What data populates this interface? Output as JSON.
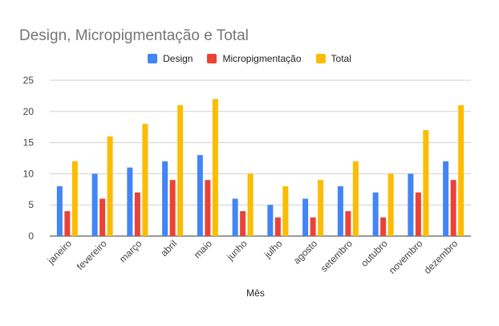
{
  "chart_data": {
    "type": "bar",
    "title": "Design, Micropigmentação e Total",
    "xlabel": "Mês",
    "ylabel": "",
    "ylim": [
      0,
      25
    ],
    "yticks": [
      0,
      5,
      10,
      15,
      20,
      25
    ],
    "grid": true,
    "legend_position": "top",
    "categories": [
      "janeiro",
      "fevereiro",
      "março",
      "abril",
      "maio",
      "junho",
      "julho",
      "agosto",
      "setembro",
      "outubro",
      "novembro",
      "dezembro"
    ],
    "series": [
      {
        "name": "Design",
        "color": "#4285F4",
        "values": [
          8,
          10,
          11,
          12,
          13,
          6,
          5,
          6,
          8,
          7,
          10,
          12
        ]
      },
      {
        "name": "Micropigmentação",
        "color": "#EA4335",
        "values": [
          4,
          6,
          7,
          9,
          9,
          4,
          3,
          3,
          4,
          3,
          7,
          9
        ]
      },
      {
        "name": "Total",
        "color": "#FBBC04",
        "values": [
          12,
          16,
          18,
          21,
          22,
          10,
          8,
          9,
          12,
          10,
          17,
          21
        ]
      }
    ]
  }
}
